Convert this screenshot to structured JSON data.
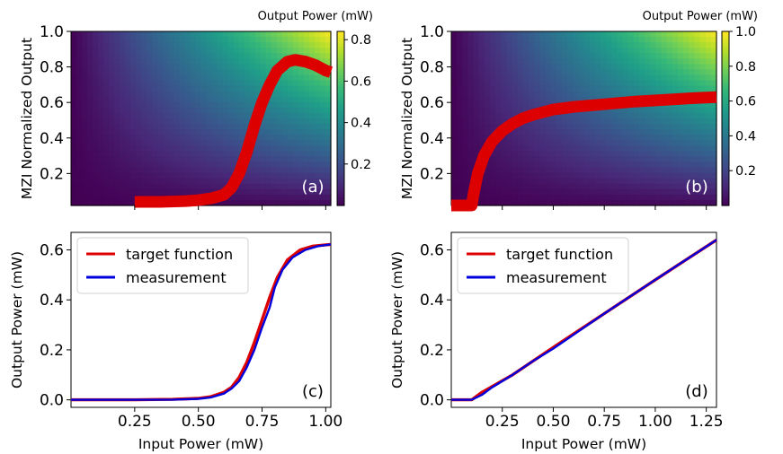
{
  "chart_data": [
    {
      "panel": "(a)",
      "type": "heatmap",
      "ylabel": "MZI Normalized Output",
      "xlim": [
        0,
        1.02
      ],
      "ylim": [
        0.02,
        1.0
      ],
      "yticks": [
        "0.2",
        "0.4",
        "0.6",
        "0.8",
        "1.0"
      ],
      "colorbar": {
        "label": "Output Power (mW)",
        "range": [
          0,
          0.84
        ],
        "ticks": [
          "0.2",
          "0.4",
          "0.6",
          "0.8"
        ],
        "colormap": "viridis"
      },
      "series": [
        {
          "color": "#dd0000",
          "x": [
            0.25,
            0.35,
            0.45,
            0.5,
            0.55,
            0.6,
            0.63,
            0.66,
            0.69,
            0.72,
            0.75,
            0.78,
            0.81,
            0.85,
            0.88,
            0.92,
            0.96,
            1.0,
            1.02
          ],
          "y": [
            0.04,
            0.04,
            0.045,
            0.05,
            0.06,
            0.08,
            0.12,
            0.2,
            0.32,
            0.47,
            0.6,
            0.7,
            0.78,
            0.83,
            0.84,
            0.83,
            0.81,
            0.78,
            0.77
          ]
        }
      ]
    },
    {
      "panel": "(b)",
      "type": "heatmap",
      "ylabel": "MZI Normalized Output",
      "xlim": [
        0,
        1.3
      ],
      "ylim": [
        0.02,
        1.0
      ],
      "yticks": [
        "0.2",
        "0.4",
        "0.6",
        "0.8",
        "1.0"
      ],
      "colorbar": {
        "label": "Output Power (mW)",
        "range": [
          0,
          1.0
        ],
        "ticks": [
          "0.2",
          "0.4",
          "0.6",
          "0.8",
          "1.0"
        ],
        "colormap": "viridis"
      },
      "series": [
        {
          "color": "#dd0000",
          "x": [
            0.0,
            0.1,
            0.11,
            0.13,
            0.16,
            0.2,
            0.25,
            0.3,
            0.35,
            0.4,
            0.5,
            0.6,
            0.75,
            0.9,
            1.05,
            1.2,
            1.3
          ],
          "y": [
            0.02,
            0.02,
            0.09,
            0.2,
            0.3,
            0.38,
            0.44,
            0.48,
            0.51,
            0.53,
            0.56,
            0.575,
            0.59,
            0.605,
            0.615,
            0.625,
            0.63
          ]
        }
      ]
    },
    {
      "panel": "(c)",
      "type": "line",
      "xlabel": "Input Power (mW)",
      "ylabel": "Output Power (mW)",
      "xlim": [
        0,
        1.02
      ],
      "ylim": [
        -0.03,
        0.67
      ],
      "xticks": [
        "0.25",
        "0.50",
        "0.75",
        "1.00"
      ],
      "yticks": [
        "0.0",
        "0.2",
        "0.4",
        "0.6"
      ],
      "legend": "top-left",
      "series": [
        {
          "name": "target function",
          "color": "#dd0000",
          "x": [
            0,
            0.25,
            0.4,
            0.5,
            0.55,
            0.6,
            0.63,
            0.66,
            0.69,
            0.72,
            0.75,
            0.78,
            0.81,
            0.85,
            0.9,
            0.95,
            1.0,
            1.02
          ],
          "y": [
            0,
            0,
            0.002,
            0.006,
            0.013,
            0.03,
            0.05,
            0.09,
            0.15,
            0.23,
            0.32,
            0.41,
            0.49,
            0.56,
            0.6,
            0.615,
            0.62,
            0.622
          ]
        },
        {
          "name": "measurement",
          "color": "#0000dd",
          "x": [
            0,
            0.25,
            0.4,
            0.5,
            0.55,
            0.6,
            0.63,
            0.66,
            0.69,
            0.72,
            0.75,
            0.78,
            0.8,
            0.83,
            0.87,
            0.92,
            0.97,
            1.02
          ],
          "y": [
            0,
            0,
            0.001,
            0.004,
            0.01,
            0.025,
            0.045,
            0.075,
            0.13,
            0.2,
            0.29,
            0.37,
            0.45,
            0.52,
            0.57,
            0.6,
            0.615,
            0.622
          ]
        }
      ]
    },
    {
      "panel": "(d)",
      "type": "line",
      "xlabel": "Input Power (mW)",
      "ylabel": "Output Power (mW)",
      "xlim": [
        0,
        1.3
      ],
      "ylim": [
        -0.03,
        0.67
      ],
      "xticks": [
        "0.25",
        "0.50",
        "0.75",
        "1.00",
        "1.25"
      ],
      "yticks": [
        "0.0",
        "0.2",
        "0.4",
        "0.6"
      ],
      "legend": "top-left",
      "series": [
        {
          "name": "target function",
          "color": "#dd0000",
          "x": [
            0,
            0.1,
            0.15,
            0.3,
            0.5,
            0.75,
            1.0,
            1.3
          ],
          "y": [
            0,
            0,
            0.03,
            0.1,
            0.21,
            0.345,
            0.48,
            0.64
          ]
        },
        {
          "name": "measurement",
          "color": "#0000dd",
          "x": [
            0,
            0.1,
            0.15,
            0.2,
            0.25,
            0.3,
            0.4,
            0.5,
            0.75,
            1.0,
            1.3
          ],
          "y": [
            0,
            0,
            0.02,
            0.05,
            0.075,
            0.1,
            0.155,
            0.205,
            0.345,
            0.48,
            0.64
          ]
        }
      ]
    }
  ]
}
